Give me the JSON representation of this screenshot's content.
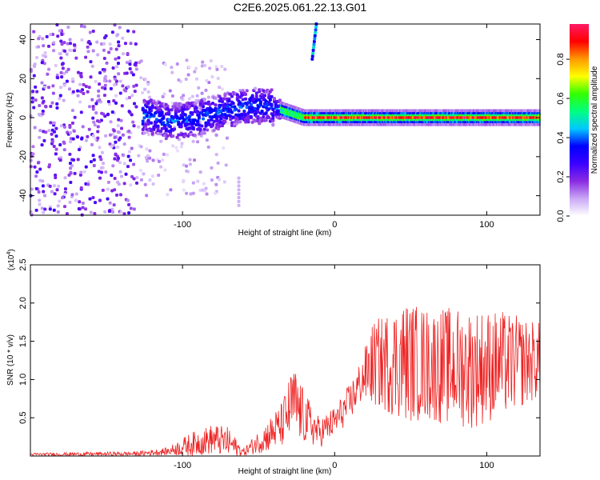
{
  "title": "C2E6.2025.061.22.13.G01",
  "chart_data": [
    {
      "type": "heatmap",
      "xlabel": "Height of straight line (km)",
      "ylabel": "Frequency (Hz)",
      "xlim": [
        -200,
        135
      ],
      "ylim": [
        -50,
        48
      ],
      "xticks": [
        -100,
        0,
        100
      ],
      "yticks": [
        -40,
        -20,
        0,
        20,
        40
      ],
      "colorbar": {
        "label": "Normalized spectral amplitude",
        "range": [
          0,
          0.98
        ],
        "ticks": [
          0.0,
          0.2,
          0.4,
          0.6,
          0.8
        ],
        "colors": [
          "#ffffff",
          "#c9a8f5",
          "#8a2be2",
          "#3b00ff",
          "#0000ff",
          "#00c8ff",
          "#00ff80",
          "#33ff00",
          "#ffff00",
          "#ff9900",
          "#ff0000",
          "#ff1a66"
        ]
      },
      "ridge": [
        {
          "x": -125,
          "y": 2
        },
        {
          "x": -110,
          "y": -2
        },
        {
          "x": -95,
          "y": -1
        },
        {
          "x": -80,
          "y": 2
        },
        {
          "x": -65,
          "y": 5
        },
        {
          "x": -55,
          "y": 6
        },
        {
          "x": -45,
          "y": 6
        },
        {
          "x": -35,
          "y": 4
        },
        {
          "x": -20,
          "y": 0
        },
        {
          "x": 0,
          "y": 0
        },
        {
          "x": 50,
          "y": 0
        },
        {
          "x": 100,
          "y": 0
        },
        {
          "x": 135,
          "y": 0
        }
      ]
    },
    {
      "type": "line",
      "xlabel": "Height of straight line (km)",
      "ylabel": "SNR (10 * v/v)",
      "yscale_label": "(x10",
      "yscale_exp": "4",
      "xlim": [
        -200,
        135
      ],
      "ylim": [
        0,
        2.5
      ],
      "xticks": [
        -100,
        0,
        100
      ],
      "yticks": [
        0.5,
        1.0,
        1.5,
        2.0,
        2.5
      ],
      "color": "#ee2222",
      "envelope": [
        {
          "x": -200,
          "mean": 0.02,
          "amp": 0.02
        },
        {
          "x": -130,
          "mean": 0.03,
          "amp": 0.03
        },
        {
          "x": -110,
          "mean": 0.06,
          "amp": 0.05
        },
        {
          "x": -95,
          "mean": 0.15,
          "amp": 0.15
        },
        {
          "x": -80,
          "mean": 0.22,
          "amp": 0.2
        },
        {
          "x": -70,
          "mean": 0.18,
          "amp": 0.2
        },
        {
          "x": -60,
          "mean": 0.05,
          "amp": 0.05
        },
        {
          "x": -45,
          "mean": 0.25,
          "amp": 0.2
        },
        {
          "x": -35,
          "mean": 0.4,
          "amp": 0.3
        },
        {
          "x": -27,
          "mean": 0.7,
          "amp": 0.5
        },
        {
          "x": -20,
          "mean": 0.5,
          "amp": 0.35
        },
        {
          "x": -10,
          "mean": 0.3,
          "amp": 0.2
        },
        {
          "x": 0,
          "mean": 0.45,
          "amp": 0.2
        },
        {
          "x": 10,
          "mean": 0.7,
          "amp": 0.25
        },
        {
          "x": 18,
          "mean": 1.0,
          "amp": 0.3
        },
        {
          "x": 25,
          "mean": 1.2,
          "amp": 0.55
        },
        {
          "x": 45,
          "mean": 1.25,
          "amp": 0.8
        },
        {
          "x": 60,
          "mean": 1.2,
          "amp": 0.75
        },
        {
          "x": 90,
          "mean": 1.15,
          "amp": 0.8
        },
        {
          "x": 110,
          "mean": 1.2,
          "amp": 0.7
        },
        {
          "x": 135,
          "mean": 1.25,
          "amp": 0.5
        }
      ]
    }
  ]
}
